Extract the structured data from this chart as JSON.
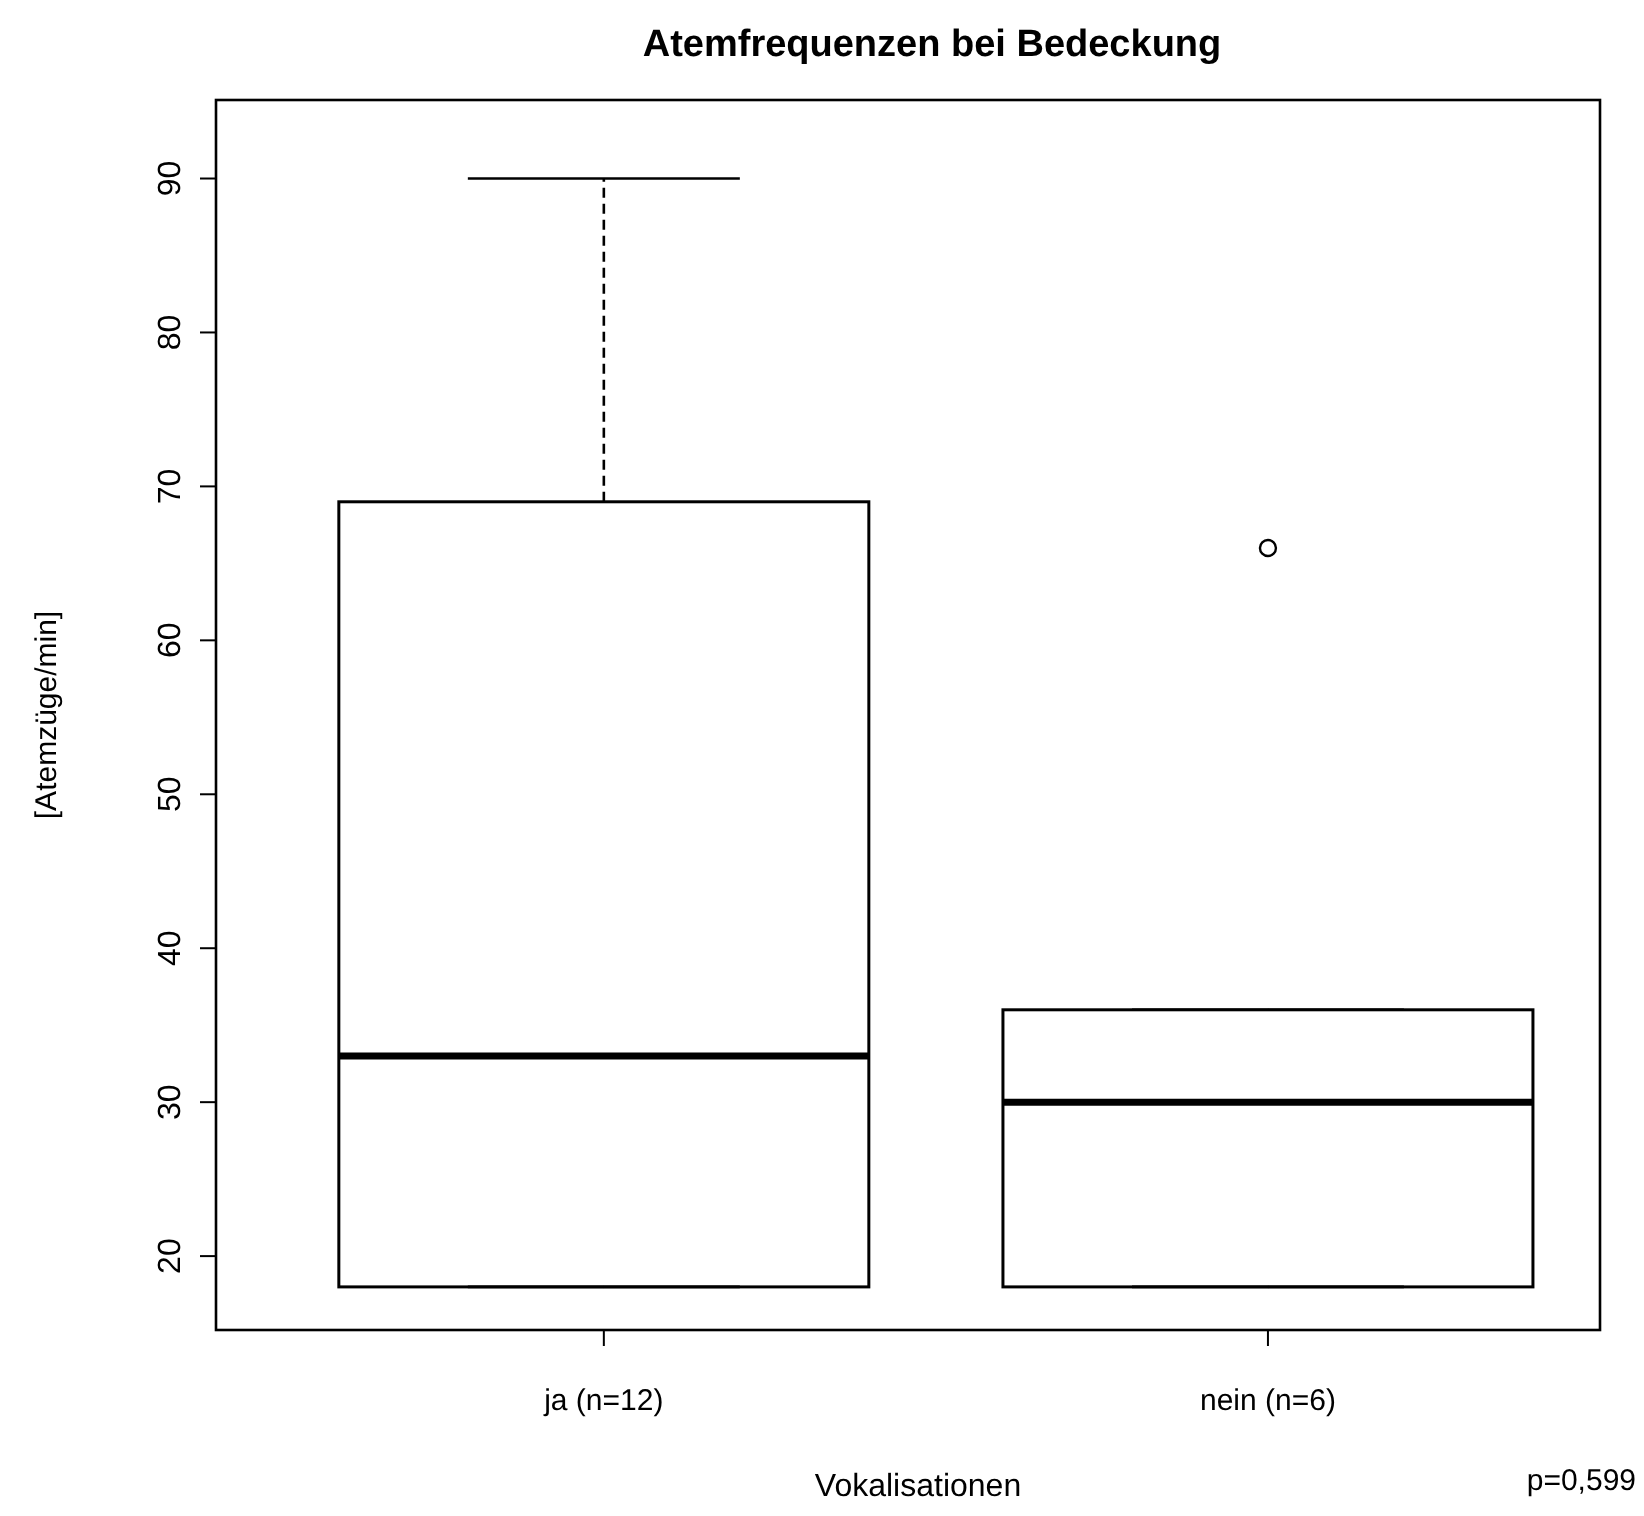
{
  "chart_data": {
    "type": "box",
    "title": "Atemfrequenzen bei Bedeckung",
    "xlabel": "Vokalisationen",
    "ylabel": "[Atemzüge/min]",
    "categories": [
      "ja (n=12)",
      "nein (n=6)"
    ],
    "boxes": [
      {
        "low": 18,
        "q1": 18,
        "median": 33,
        "q3": 69,
        "high": 90
      },
      {
        "low": 18,
        "q1": 18,
        "median": 30,
        "q3": 36,
        "high": 36,
        "outliers": [
          66
        ]
      }
    ],
    "ylim": [
      15.2,
      95.1
    ],
    "yticks": [
      20,
      30,
      40,
      50,
      60,
      70,
      80,
      90
    ],
    "grid": false,
    "annotations": [
      "p=0,599"
    ]
  }
}
